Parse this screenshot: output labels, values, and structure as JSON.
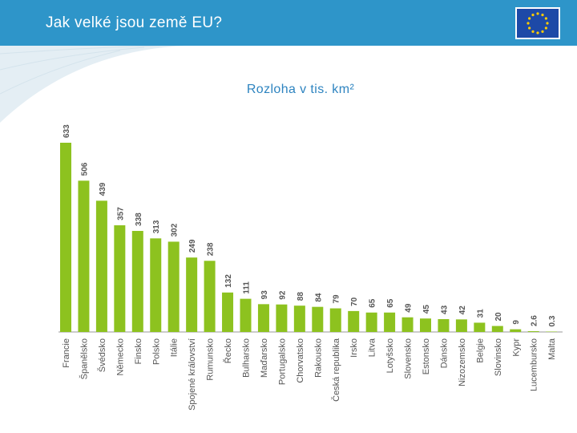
{
  "header": {
    "title": "Jak velké jsou země EU?"
  },
  "colors": {
    "header_bg": "#2e95c9",
    "bar": "#8dc21f",
    "title": "#2e84c0",
    "axis": "#9a9a9a",
    "text": "#555555"
  },
  "icons": {
    "flag": "eu-flag-icon"
  },
  "chart_data": {
    "type": "bar",
    "title": "Rozloha v tis. km²",
    "xlabel": "",
    "ylabel": "",
    "categories": [
      "Francie",
      "Španělsko",
      "Švédsko",
      "Německo",
      "Finsko",
      "Polsko",
      "Itálie",
      "Spojené království",
      "Rumunsko",
      "Řecko",
      "Bulharsko",
      "Maďarsko",
      "Portugalsko",
      "Chorvatsko",
      "Rakousko",
      "Česká republika",
      "Irsko",
      "Litva",
      "Lotyšsko",
      "Slovensko",
      "Estonsko",
      "Dánsko",
      "Nizozemsko",
      "Belgie",
      "Slovinsko",
      "Kypr",
      "Lucembursko",
      "Malta"
    ],
    "values": [
      633,
      506,
      439,
      357,
      338,
      313,
      302,
      249,
      238,
      132,
      111,
      93,
      92,
      88,
      84,
      79,
      70,
      65,
      65,
      49,
      45,
      43,
      42,
      31,
      20,
      9,
      2.6,
      0.3
    ],
    "value_labels": [
      "633",
      "506",
      "439",
      "357",
      "338",
      "313",
      "302",
      "249",
      "238",
      "132",
      "111",
      "93",
      "92",
      "88",
      "84",
      "79",
      "70",
      "65",
      "65",
      "49",
      "45",
      "43",
      "42",
      "31",
      "20",
      "9",
      "2.6",
      "0.3"
    ],
    "ylim": [
      0,
      633
    ],
    "grid": false,
    "legend": "none"
  }
}
